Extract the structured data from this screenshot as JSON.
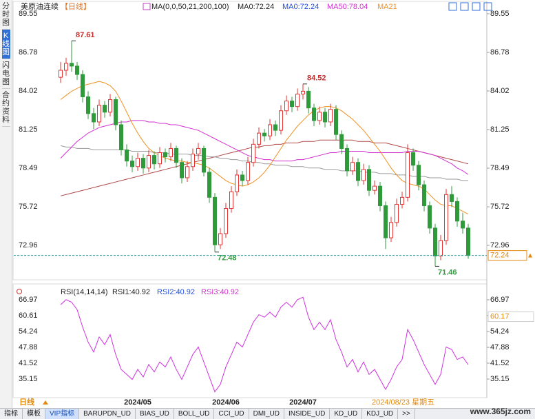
{
  "chart_data": {
    "type": "candlestick",
    "title": "美原油连续",
    "period_tag": "【日线】",
    "ma_legend": [
      {
        "label": "MA(0,0,50,21,200,100)",
        "color": "#222222"
      },
      {
        "label": "MA0:72.24",
        "color": "#222222"
      },
      {
        "label": "MA0:72.24",
        "color": "#2050e0"
      },
      {
        "label": "MA50:78.04",
        "color": "#d030d0"
      },
      {
        "label": "MA21",
        "color": "#f09020"
      }
    ],
    "up_color": "#e8322f",
    "down_color": "#2f9a3a",
    "ylim": [
      70.79,
      90.04
    ],
    "yticks": [
      89.55,
      86.78,
      84.02,
      81.25,
      78.49,
      75.72,
      72.96
    ],
    "categories": [
      null,
      null,
      null,
      null,
      null,
      null,
      null,
      null,
      null,
      null,
      null,
      null,
      null,
      null,
      "2024/05",
      null,
      null,
      null,
      null,
      null,
      null,
      null,
      null,
      null,
      null,
      null,
      null,
      null,
      null,
      null,
      "2024/06",
      null,
      null,
      null,
      null,
      null,
      null,
      null,
      null,
      null,
      null,
      null,
      null,
      null,
      "2024/07",
      null,
      null,
      null,
      null,
      null,
      null,
      null,
      null,
      null,
      null,
      null,
      null,
      null,
      null,
      null,
      null,
      null,
      null,
      null,
      null,
      null,
      null,
      null,
      null,
      null,
      null,
      null,
      null,
      null,
      null
    ],
    "candles": [
      [
        85.0,
        86.1,
        84.6,
        85.5
      ],
      [
        85.5,
        86.4,
        85.1,
        86.0
      ],
      [
        86.0,
        87.61,
        85.4,
        85.8
      ],
      [
        85.8,
        86.1,
        84.8,
        85.2
      ],
      [
        85.2,
        85.5,
        83.2,
        83.6
      ],
      [
        83.6,
        84.0,
        82.0,
        82.4
      ],
      [
        82.4,
        82.8,
        81.3,
        81.8
      ],
      [
        81.8,
        83.4,
        81.5,
        83.0
      ],
      [
        83.0,
        83.3,
        82.1,
        82.5
      ],
      [
        82.5,
        83.8,
        82.2,
        83.4
      ],
      [
        83.4,
        83.6,
        81.2,
        81.6
      ],
      [
        81.6,
        81.9,
        79.4,
        79.8
      ],
      [
        79.8,
        80.2,
        78.6,
        79.0
      ],
      [
        79.0,
        79.4,
        78.2,
        78.6
      ],
      [
        78.6,
        79.6,
        78.3,
        79.2
      ],
      [
        79.2,
        79.5,
        78.1,
        78.5
      ],
      [
        78.5,
        79.8,
        78.2,
        79.4
      ],
      [
        79.4,
        79.7,
        78.4,
        78.8
      ],
      [
        78.8,
        80.0,
        78.5,
        79.6
      ],
      [
        79.6,
        79.9,
        78.9,
        79.3
      ],
      [
        79.3,
        80.3,
        79.0,
        79.9
      ],
      [
        79.9,
        80.1,
        78.5,
        78.9
      ],
      [
        78.9,
        79.2,
        77.4,
        77.8
      ],
      [
        77.8,
        79.0,
        77.5,
        78.6
      ],
      [
        78.6,
        79.9,
        78.3,
        79.5
      ],
      [
        79.5,
        80.3,
        79.1,
        79.9
      ],
      [
        79.9,
        80.1,
        77.9,
        78.2
      ],
      [
        78.2,
        78.5,
        76.0,
        76.4
      ],
      [
        76.4,
        76.7,
        72.48,
        73.0
      ],
      [
        73.0,
        74.2,
        72.7,
        73.8
      ],
      [
        73.8,
        76.0,
        73.5,
        75.6
      ],
      [
        75.6,
        77.2,
        75.3,
        76.8
      ],
      [
        76.8,
        78.4,
        76.5,
        78.0
      ],
      [
        78.0,
        78.3,
        77.2,
        77.6
      ],
      [
        77.6,
        79.3,
        77.3,
        78.9
      ],
      [
        78.9,
        80.6,
        78.6,
        80.2
      ],
      [
        80.2,
        81.4,
        79.9,
        81.0
      ],
      [
        81.0,
        81.3,
        80.4,
        80.8
      ],
      [
        80.8,
        82.0,
        80.5,
        81.6
      ],
      [
        81.6,
        81.9,
        80.8,
        81.2
      ],
      [
        81.2,
        83.0,
        80.9,
        82.6
      ],
      [
        82.6,
        83.7,
        82.3,
        83.3
      ],
      [
        83.3,
        83.6,
        82.5,
        82.9
      ],
      [
        82.9,
        84.2,
        82.6,
        83.8
      ],
      [
        83.8,
        84.52,
        83.4,
        84.0
      ],
      [
        84.0,
        84.3,
        82.4,
        82.8
      ],
      [
        82.8,
        83.1,
        81.5,
        81.9
      ],
      [
        81.9,
        82.9,
        81.6,
        82.5
      ],
      [
        82.5,
        82.8,
        81.4,
        81.8
      ],
      [
        81.8,
        83.1,
        81.5,
        82.7
      ],
      [
        82.7,
        83.0,
        80.5,
        80.9
      ],
      [
        80.9,
        81.2,
        79.5,
        79.9
      ],
      [
        79.9,
        80.2,
        77.9,
        78.3
      ],
      [
        78.3,
        79.3,
        78.0,
        78.9
      ],
      [
        78.9,
        79.2,
        77.2,
        77.6
      ],
      [
        77.6,
        78.8,
        77.3,
        78.4
      ],
      [
        78.4,
        78.7,
        76.5,
        76.9
      ],
      [
        76.9,
        77.6,
        76.6,
        77.2
      ],
      [
        77.2,
        77.5,
        75.4,
        75.8
      ],
      [
        75.8,
        76.1,
        72.7,
        73.5
      ],
      [
        73.5,
        75.0,
        73.2,
        74.6
      ],
      [
        74.6,
        76.3,
        74.3,
        75.9
      ],
      [
        75.9,
        76.8,
        75.6,
        76.4
      ],
      [
        76.4,
        80.2,
        76.1,
        79.6
      ],
      [
        79.6,
        79.9,
        78.3,
        78.7
      ],
      [
        78.7,
        79.0,
        76.9,
        77.3
      ],
      [
        77.3,
        77.6,
        75.4,
        75.8
      ],
      [
        75.8,
        76.1,
        73.8,
        74.2
      ],
      [
        74.2,
        74.5,
        71.46,
        72.2
      ],
      [
        72.2,
        73.7,
        71.9,
        73.3
      ],
      [
        73.3,
        77.0,
        73.0,
        76.6
      ],
      [
        76.6,
        77.2,
        75.7,
        76.1
      ],
      [
        76.1,
        76.4,
        74.3,
        74.7
      ],
      [
        74.7,
        75.3,
        73.8,
        74.2
      ],
      [
        74.2,
        74.5,
        72.0,
        72.24
      ]
    ],
    "ma_series": [
      {
        "color": "#b04848",
        "values": [
          76.5,
          76.6,
          76.7,
          76.8,
          76.9,
          77.0,
          77.1,
          77.2,
          77.3,
          77.4,
          77.5,
          77.6,
          77.7,
          77.8,
          77.9,
          78.0,
          78.1,
          78.2,
          78.3,
          78.4,
          78.5,
          78.6,
          78.7,
          78.8,
          78.9,
          79.0,
          79.1,
          79.2,
          79.3,
          79.4,
          79.5,
          79.6,
          79.7,
          79.8,
          79.9,
          80.0,
          80.0,
          80.1,
          80.1,
          80.2,
          80.2,
          80.3,
          80.3,
          80.3,
          80.4,
          80.4,
          80.4,
          80.5,
          80.5,
          80.5,
          80.5,
          80.5,
          80.5,
          80.5,
          80.4,
          80.4,
          80.4,
          80.3,
          80.3,
          80.3,
          80.2,
          80.1,
          80.0,
          79.9,
          79.8,
          79.7,
          79.6,
          79.5,
          79.4,
          79.3,
          79.2,
          79.1,
          79.0,
          78.9,
          78.8
        ]
      },
      {
        "color": "#9a9a9a",
        "values": [
          80.1,
          80.0,
          80.0,
          79.9,
          79.9,
          79.9,
          79.8,
          79.8,
          79.8,
          79.8,
          79.8,
          79.8,
          79.8,
          79.7,
          79.7,
          79.7,
          79.7,
          79.6,
          79.6,
          79.6,
          79.5,
          79.5,
          79.5,
          79.5,
          79.4,
          79.4,
          79.4,
          79.3,
          79.3,
          79.2,
          79.2,
          79.1,
          79.1,
          79.0,
          79.0,
          78.9,
          78.9,
          78.8,
          78.8,
          78.7,
          78.7,
          78.7,
          78.6,
          78.6,
          78.6,
          78.5,
          78.5,
          78.5,
          78.4,
          78.4,
          78.4,
          78.3,
          78.3,
          78.3,
          78.3,
          78.2,
          78.2,
          78.2,
          78.1,
          78.1,
          78.1,
          78.0,
          78.0,
          78.0,
          77.9,
          77.9,
          77.9,
          77.8,
          77.8,
          77.8,
          77.7,
          77.7,
          77.7,
          77.6,
          77.6
        ]
      },
      {
        "color": "#d030d0",
        "values": [
          79.2,
          79.6,
          80.0,
          80.4,
          80.7,
          81.0,
          81.2,
          81.4,
          81.5,
          81.6,
          81.7,
          81.8,
          81.8,
          81.9,
          81.9,
          81.9,
          81.8,
          81.8,
          81.7,
          81.7,
          81.6,
          81.6,
          81.5,
          81.4,
          81.3,
          81.2,
          81.0,
          80.8,
          80.6,
          80.4,
          80.2,
          80.0,
          79.8,
          79.6,
          79.4,
          79.3,
          79.2,
          79.1,
          79.1,
          79.0,
          79.0,
          79.0,
          79.0,
          79.1,
          79.1,
          79.2,
          79.3,
          79.4,
          79.5,
          79.6,
          79.6,
          79.7,
          79.7,
          79.7,
          79.7,
          79.7,
          79.6,
          79.6,
          79.6,
          79.6,
          79.6,
          79.6,
          79.6,
          79.7,
          79.7,
          79.7,
          79.6,
          79.5,
          79.4,
          79.2,
          79.0,
          78.8,
          78.5,
          78.3,
          78.04
        ]
      },
      {
        "color": "#f09020",
        "values": [
          83.4,
          83.7,
          84.0,
          84.2,
          84.4,
          84.5,
          84.6,
          84.7,
          84.6,
          84.4,
          84.0,
          83.3,
          82.5,
          81.7,
          81.0,
          80.4,
          79.9,
          79.6,
          79.4,
          79.2,
          79.1,
          79.0,
          79.0,
          78.9,
          78.9,
          78.8,
          78.7,
          78.5,
          78.2,
          77.9,
          77.6,
          77.4,
          77.3,
          77.2,
          77.3,
          77.5,
          77.8,
          78.2,
          78.7,
          79.3,
          79.9,
          80.5,
          81.0,
          81.5,
          81.9,
          82.3,
          82.6,
          82.8,
          82.9,
          82.9,
          82.8,
          82.6,
          82.3,
          82.0,
          81.6,
          81.2,
          80.7,
          80.2,
          79.7,
          79.1,
          78.5,
          78.0,
          77.6,
          77.4,
          77.3,
          77.2,
          77.0,
          76.6,
          76.2,
          75.9,
          75.8,
          75.8,
          75.6,
          75.4,
          75.2
        ]
      }
    ],
    "price_line_color": "#2a9a9a",
    "rsi_legend": [
      {
        "label": "RSI(14,14,14)",
        "color": "#222222"
      },
      {
        "label": "RSI1:40.92",
        "color": "#222222"
      },
      {
        "label": "RSI2:40.92",
        "color": "#2050e0"
      },
      {
        "label": "RSI3:40.92",
        "color": "#d030d0"
      }
    ],
    "rsi_color": "#d030e0",
    "rsi_ylim": [
      28.23,
      71.12
    ],
    "rsi_yticks": [
      66.97,
      60.61,
      54.24,
      47.88,
      41.52,
      35.15
    ],
    "rsi_values": [
      65,
      67,
      66,
      63,
      56,
      50,
      46,
      52,
      49,
      53,
      45,
      39,
      37,
      35,
      39,
      36,
      41,
      38,
      42,
      40,
      44,
      39,
      35,
      40,
      45,
      48,
      42,
      36,
      30,
      33,
      40,
      45,
      50,
      48,
      53,
      58,
      61,
      60,
      62,
      60,
      64,
      66,
      64,
      67,
      68,
      60,
      55,
      58,
      55,
      59,
      51,
      46,
      40,
      43,
      38,
      42,
      37,
      39,
      35,
      31,
      35,
      40,
      43,
      55,
      51,
      46,
      41,
      37,
      33,
      37,
      48,
      47,
      43,
      44,
      40.92
    ],
    "rsi_cursor": 60.17,
    "period": "日线",
    "cursor_date": "2024/08/23 星期五"
  },
  "sidebar": [
    "分时图",
    "K线图",
    "闪电图",
    "合约资料"
  ],
  "tabs": [
    "指标",
    "模板",
    "VIP指标",
    "BARUPDN_UD",
    "BIAS_UD",
    "BOLL_UD",
    "CCI_UD",
    "DMI_UD",
    "INSIDE_UD",
    "KD_UD",
    "KDJ_UD",
    ">>"
  ],
  "watermark": "www.365jz.com"
}
